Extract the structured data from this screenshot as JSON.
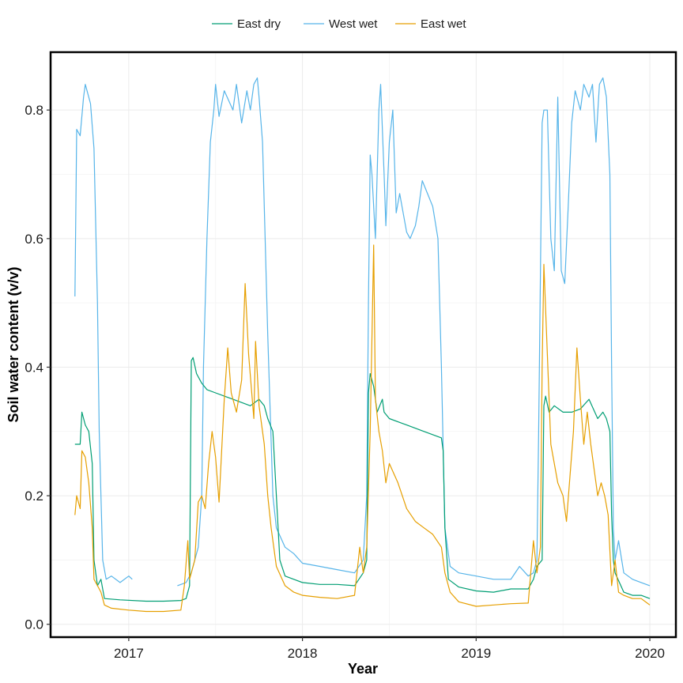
{
  "chart_data": {
    "type": "line",
    "title": "",
    "xlabel": "Year",
    "ylabel": "Soil water content (v/v)",
    "xlim": [
      2016.55,
      2020.15
    ],
    "ylim": [
      -0.02,
      0.89
    ],
    "x_ticks": [
      2017,
      2018,
      2019,
      2020
    ],
    "x_tick_labels": [
      "2017",
      "2018",
      "2019",
      "2020"
    ],
    "y_ticks": [
      0.0,
      0.2,
      0.4,
      0.6,
      0.8
    ],
    "y_tick_labels": [
      "0.0",
      "0.2",
      "0.4",
      "0.6",
      "0.8"
    ],
    "grid": true,
    "legend_position": "top",
    "colors": {
      "East dry": "#009E73",
      "West wet": "#56B4E9",
      "East wet": "#E69F00"
    },
    "series": [
      {
        "name": "East dry",
        "color": "#009E73",
        "points": [
          [
            2016.69,
            0.28
          ],
          [
            2016.72,
            0.28
          ],
          [
            2016.73,
            0.33
          ],
          [
            2016.75,
            0.31
          ],
          [
            2016.77,
            0.3
          ],
          [
            2016.79,
            0.25
          ],
          [
            2016.8,
            0.1
          ],
          [
            2016.82,
            0.06
          ],
          [
            2016.84,
            0.07
          ],
          [
            2016.86,
            0.04
          ],
          [
            2016.95,
            0.038
          ],
          [
            2017.1,
            0.036
          ],
          [
            2017.2,
            0.036
          ],
          [
            2017.3,
            0.037
          ],
          [
            2017.33,
            0.04
          ],
          [
            2017.35,
            0.06
          ],
          [
            2017.36,
            0.41
          ],
          [
            2017.37,
            0.415
          ],
          [
            2017.39,
            0.39
          ],
          [
            2017.42,
            0.375
          ],
          [
            2017.45,
            0.365
          ],
          [
            2017.5,
            0.36
          ],
          [
            2017.55,
            0.355
          ],
          [
            2017.6,
            0.35
          ],
          [
            2017.65,
            0.345
          ],
          [
            2017.7,
            0.34
          ],
          [
            2017.75,
            0.35
          ],
          [
            2017.78,
            0.34
          ],
          [
            2017.8,
            0.32
          ],
          [
            2017.83,
            0.3
          ],
          [
            2017.85,
            0.2
          ],
          [
            2017.87,
            0.1
          ],
          [
            2017.9,
            0.075
          ],
          [
            2017.95,
            0.07
          ],
          [
            2018.0,
            0.065
          ],
          [
            2018.1,
            0.062
          ],
          [
            2018.2,
            0.062
          ],
          [
            2018.3,
            0.06
          ],
          [
            2018.35,
            0.08
          ],
          [
            2018.37,
            0.1
          ],
          [
            2018.38,
            0.36
          ],
          [
            2018.39,
            0.39
          ],
          [
            2018.41,
            0.37
          ],
          [
            2018.43,
            0.33
          ],
          [
            2018.46,
            0.35
          ],
          [
            2018.47,
            0.33
          ],
          [
            2018.5,
            0.32
          ],
          [
            2018.6,
            0.31
          ],
          [
            2018.7,
            0.3
          ],
          [
            2018.8,
            0.29
          ],
          [
            2018.81,
            0.27
          ],
          [
            2018.82,
            0.15
          ],
          [
            2018.84,
            0.07
          ],
          [
            2018.9,
            0.058
          ],
          [
            2019.0,
            0.052
          ],
          [
            2019.1,
            0.05
          ],
          [
            2019.2,
            0.055
          ],
          [
            2019.3,
            0.055
          ],
          [
            2019.33,
            0.07
          ],
          [
            2019.35,
            0.09
          ],
          [
            2019.38,
            0.1
          ],
          [
            2019.39,
            0.34
          ],
          [
            2019.4,
            0.355
          ],
          [
            2019.42,
            0.33
          ],
          [
            2019.45,
            0.34
          ],
          [
            2019.5,
            0.33
          ],
          [
            2019.55,
            0.33
          ],
          [
            2019.6,
            0.335
          ],
          [
            2019.65,
            0.35
          ],
          [
            2019.7,
            0.32
          ],
          [
            2019.73,
            0.33
          ],
          [
            2019.75,
            0.32
          ],
          [
            2019.77,
            0.3
          ],
          [
            2019.78,
            0.17
          ],
          [
            2019.79,
            0.1
          ],
          [
            2019.8,
            0.08
          ],
          [
            2019.85,
            0.05
          ],
          [
            2019.9,
            0.045
          ],
          [
            2019.95,
            0.045
          ],
          [
            2020.0,
            0.04
          ]
        ]
      },
      {
        "name": "West wet",
        "color": "#56B4E9",
        "points": [
          [
            2016.69,
            0.51
          ],
          [
            2016.7,
            0.77
          ],
          [
            2016.72,
            0.76
          ],
          [
            2016.74,
            0.82
          ],
          [
            2016.75,
            0.84
          ],
          [
            2016.76,
            0.83
          ],
          [
            2016.78,
            0.81
          ],
          [
            2016.8,
            0.74
          ],
          [
            2016.82,
            0.5
          ],
          [
            2016.83,
            0.3
          ],
          [
            2016.85,
            0.1
          ],
          [
            2016.87,
            0.07
          ],
          [
            2016.9,
            0.075
          ],
          [
            2016.95,
            0.065
          ],
          [
            2017.0,
            0.075
          ],
          [
            2017.02,
            0.07
          ],
          [
            null,
            null
          ],
          [
            2017.28,
            0.06
          ],
          [
            2017.33,
            0.065
          ],
          [
            2017.36,
            0.08
          ],
          [
            2017.4,
            0.12
          ],
          [
            2017.42,
            0.2
          ],
          [
            2017.43,
            0.4
          ],
          [
            2017.45,
            0.6
          ],
          [
            2017.47,
            0.75
          ],
          [
            2017.49,
            0.8
          ],
          [
            2017.5,
            0.84
          ],
          [
            2017.52,
            0.79
          ],
          [
            2017.55,
            0.83
          ],
          [
            2017.6,
            0.8
          ],
          [
            2017.62,
            0.84
          ],
          [
            2017.65,
            0.78
          ],
          [
            2017.68,
            0.83
          ],
          [
            2017.7,
            0.8
          ],
          [
            2017.72,
            0.84
          ],
          [
            2017.74,
            0.85
          ],
          [
            2017.75,
            0.82
          ],
          [
            2017.77,
            0.75
          ],
          [
            2017.8,
            0.45
          ],
          [
            2017.83,
            0.2
          ],
          [
            2017.85,
            0.15
          ],
          [
            2017.9,
            0.12
          ],
          [
            2017.95,
            0.11
          ],
          [
            2018.0,
            0.095
          ],
          [
            2018.1,
            0.09
          ],
          [
            2018.2,
            0.085
          ],
          [
            2018.3,
            0.08
          ],
          [
            2018.35,
            0.1
          ],
          [
            2018.37,
            0.2
          ],
          [
            2018.38,
            0.5
          ],
          [
            2018.39,
            0.73
          ],
          [
            2018.4,
            0.7
          ],
          [
            2018.42,
            0.6
          ],
          [
            2018.44,
            0.8
          ],
          [
            2018.45,
            0.84
          ],
          [
            2018.47,
            0.7
          ],
          [
            2018.48,
            0.62
          ],
          [
            2018.5,
            0.75
          ],
          [
            2018.52,
            0.8
          ],
          [
            2018.54,
            0.64
          ],
          [
            2018.56,
            0.67
          ],
          [
            2018.6,
            0.61
          ],
          [
            2018.62,
            0.6
          ],
          [
            2018.65,
            0.62
          ],
          [
            2018.67,
            0.65
          ],
          [
            2018.69,
            0.69
          ],
          [
            2018.72,
            0.67
          ],
          [
            2018.75,
            0.65
          ],
          [
            2018.78,
            0.6
          ],
          [
            2018.8,
            0.4
          ],
          [
            2018.82,
            0.15
          ],
          [
            2018.85,
            0.09
          ],
          [
            2018.9,
            0.08
          ],
          [
            2019.0,
            0.075
          ],
          [
            2019.1,
            0.07
          ],
          [
            2019.2,
            0.07
          ],
          [
            2019.25,
            0.09
          ],
          [
            2019.3,
            0.075
          ],
          [
            2019.33,
            0.08
          ],
          [
            2019.35,
            0.1
          ],
          [
            2019.36,
            0.3
          ],
          [
            2019.38,
            0.78
          ],
          [
            2019.39,
            0.8
          ],
          [
            2019.41,
            0.8
          ],
          [
            2019.43,
            0.6
          ],
          [
            2019.45,
            0.55
          ],
          [
            2019.47,
            0.82
          ],
          [
            2019.49,
            0.55
          ],
          [
            2019.51,
            0.53
          ],
          [
            2019.53,
            0.65
          ],
          [
            2019.55,
            0.78
          ],
          [
            2019.57,
            0.83
          ],
          [
            2019.6,
            0.8
          ],
          [
            2019.62,
            0.84
          ],
          [
            2019.65,
            0.82
          ],
          [
            2019.67,
            0.84
          ],
          [
            2019.69,
            0.75
          ],
          [
            2019.71,
            0.84
          ],
          [
            2019.73,
            0.85
          ],
          [
            2019.75,
            0.82
          ],
          [
            2019.77,
            0.7
          ],
          [
            2019.78,
            0.4
          ],
          [
            2019.79,
            0.15
          ],
          [
            2019.8,
            0.1
          ],
          [
            2019.82,
            0.13
          ],
          [
            2019.85,
            0.08
          ],
          [
            2019.9,
            0.07
          ],
          [
            2019.95,
            0.065
          ],
          [
            2020.0,
            0.06
          ]
        ]
      },
      {
        "name": "East wet",
        "color": "#E69F00",
        "points": [
          [
            2016.69,
            0.17
          ],
          [
            2016.7,
            0.2
          ],
          [
            2016.72,
            0.18
          ],
          [
            2016.73,
            0.27
          ],
          [
            2016.75,
            0.26
          ],
          [
            2016.77,
            0.22
          ],
          [
            2016.79,
            0.15
          ],
          [
            2016.8,
            0.07
          ],
          [
            2016.82,
            0.06
          ],
          [
            2016.84,
            0.05
          ],
          [
            2016.86,
            0.03
          ],
          [
            2016.9,
            0.025
          ],
          [
            2017.0,
            0.022
          ],
          [
            2017.1,
            0.02
          ],
          [
            2017.2,
            0.02
          ],
          [
            2017.3,
            0.022
          ],
          [
            2017.32,
            0.06
          ],
          [
            2017.34,
            0.13
          ],
          [
            2017.35,
            0.07
          ],
          [
            2017.38,
            0.1
          ],
          [
            2017.4,
            0.19
          ],
          [
            2017.42,
            0.2
          ],
          [
            2017.44,
            0.18
          ],
          [
            2017.46,
            0.25
          ],
          [
            2017.48,
            0.3
          ],
          [
            2017.5,
            0.26
          ],
          [
            2017.52,
            0.19
          ],
          [
            2017.55,
            0.35
          ],
          [
            2017.57,
            0.43
          ],
          [
            2017.59,
            0.36
          ],
          [
            2017.62,
            0.33
          ],
          [
            2017.65,
            0.38
          ],
          [
            2017.67,
            0.53
          ],
          [
            2017.69,
            0.42
          ],
          [
            2017.72,
            0.32
          ],
          [
            2017.73,
            0.44
          ],
          [
            2017.75,
            0.34
          ],
          [
            2017.78,
            0.28
          ],
          [
            2017.8,
            0.2
          ],
          [
            2017.82,
            0.15
          ],
          [
            2017.85,
            0.09
          ],
          [
            2017.9,
            0.06
          ],
          [
            2017.95,
            0.05
          ],
          [
            2018.0,
            0.045
          ],
          [
            2018.1,
            0.042
          ],
          [
            2018.2,
            0.04
          ],
          [
            2018.3,
            0.045
          ],
          [
            2018.33,
            0.12
          ],
          [
            2018.35,
            0.08
          ],
          [
            2018.37,
            0.12
          ],
          [
            2018.39,
            0.3
          ],
          [
            2018.41,
            0.59
          ],
          [
            2018.42,
            0.35
          ],
          [
            2018.44,
            0.3
          ],
          [
            2018.46,
            0.27
          ],
          [
            2018.48,
            0.22
          ],
          [
            2018.5,
            0.25
          ],
          [
            2018.55,
            0.22
          ],
          [
            2018.6,
            0.18
          ],
          [
            2018.65,
            0.16
          ],
          [
            2018.7,
            0.15
          ],
          [
            2018.75,
            0.14
          ],
          [
            2018.8,
            0.12
          ],
          [
            2018.82,
            0.08
          ],
          [
            2018.85,
            0.05
          ],
          [
            2018.9,
            0.035
          ],
          [
            2019.0,
            0.028
          ],
          [
            2019.1,
            0.03
          ],
          [
            2019.2,
            0.032
          ],
          [
            2019.3,
            0.033
          ],
          [
            2019.33,
            0.13
          ],
          [
            2019.35,
            0.08
          ],
          [
            2019.37,
            0.12
          ],
          [
            2019.38,
            0.4
          ],
          [
            2019.39,
            0.56
          ],
          [
            2019.41,
            0.42
          ],
          [
            2019.43,
            0.28
          ],
          [
            2019.45,
            0.25
          ],
          [
            2019.47,
            0.22
          ],
          [
            2019.5,
            0.2
          ],
          [
            2019.52,
            0.16
          ],
          [
            2019.54,
            0.23
          ],
          [
            2019.56,
            0.3
          ],
          [
            2019.58,
            0.43
          ],
          [
            2019.6,
            0.35
          ],
          [
            2019.62,
            0.28
          ],
          [
            2019.64,
            0.33
          ],
          [
            2019.66,
            0.28
          ],
          [
            2019.68,
            0.24
          ],
          [
            2019.7,
            0.2
          ],
          [
            2019.72,
            0.22
          ],
          [
            2019.74,
            0.2
          ],
          [
            2019.76,
            0.17
          ],
          [
            2019.78,
            0.06
          ],
          [
            2019.8,
            0.1
          ],
          [
            2019.82,
            0.05
          ],
          [
            2019.85,
            0.045
          ],
          [
            2019.9,
            0.04
          ],
          [
            2019.95,
            0.04
          ],
          [
            2020.0,
            0.03
          ]
        ]
      }
    ]
  }
}
